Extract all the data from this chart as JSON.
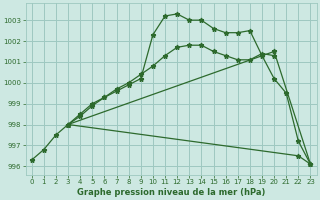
{
  "title": "Graphe pression niveau de la mer (hPa)",
  "bg_color": "#cde8e2",
  "grid_color": "#9ec8c0",
  "line_color": "#2d6a2d",
  "xlim": [
    -0.5,
    23.5
  ],
  "ylim": [
    995.6,
    1003.8
  ],
  "yticks": [
    996,
    997,
    998,
    999,
    1000,
    1001,
    1002,
    1003
  ],
  "xticks": [
    0,
    1,
    2,
    3,
    4,
    5,
    6,
    7,
    8,
    9,
    10,
    11,
    12,
    13,
    14,
    15,
    16,
    17,
    18,
    19,
    20,
    21,
    22,
    23
  ],
  "line1_x": [
    0,
    1,
    2,
    3,
    4,
    5,
    6,
    7,
    8,
    9,
    10,
    11,
    12,
    13,
    14,
    15,
    16,
    17,
    18,
    19,
    20,
    21,
    22,
    23
  ],
  "line1_y": [
    996.3,
    996.8,
    997.5,
    998.0,
    998.5,
    999.0,
    999.3,
    999.6,
    999.9,
    1000.2,
    1002.3,
    1003.2,
    1003.3,
    1003.0,
    1003.0,
    1002.6,
    1002.4,
    1002.4,
    1002.5,
    1001.3,
    1000.2,
    999.5,
    997.2,
    996.1
  ],
  "line2_x": [
    3,
    4,
    5,
    6,
    7,
    8,
    9,
    10,
    11,
    12,
    13,
    14,
    15,
    16,
    17,
    18,
    19,
    20
  ],
  "line2_y": [
    998.0,
    998.4,
    998.9,
    999.3,
    999.7,
    1000.0,
    1000.4,
    1000.8,
    1001.3,
    1001.7,
    1001.8,
    1001.8,
    1001.5,
    1001.3,
    1001.1,
    1001.1,
    1001.4,
    1001.3
  ],
  "line3_x": [
    3,
    20,
    23
  ],
  "line3_y": [
    998.0,
    1001.5,
    996.1
  ],
  "line4_x": [
    3,
    22,
    23
  ],
  "line4_y": [
    998.0,
    996.5,
    996.1
  ]
}
